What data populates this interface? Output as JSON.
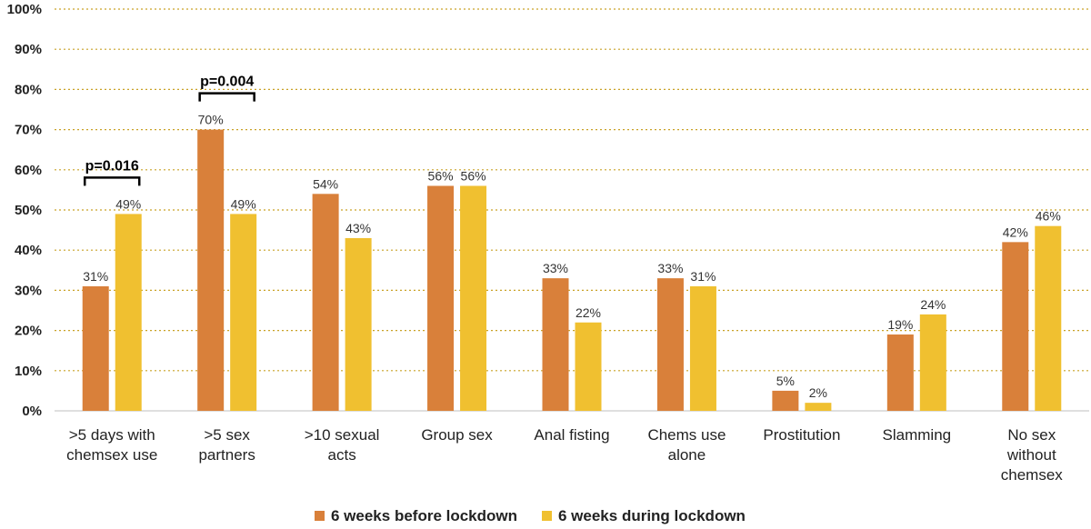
{
  "chart_data": {
    "type": "bar",
    "categories": [
      [
        ">5 days with",
        "chemsex use"
      ],
      [
        ">5 sex",
        "partners"
      ],
      [
        ">10 sexual",
        "acts"
      ],
      [
        "Group sex"
      ],
      [
        "Anal fisting"
      ],
      [
        "Chems use",
        "alone"
      ],
      [
        "Prostitution"
      ],
      [
        "Slamming"
      ],
      [
        "No sex",
        "without",
        "chemsex"
      ]
    ],
    "series": [
      {
        "name": "6 weeks before lockdown",
        "color": "#D9803A",
        "values": [
          31,
          70,
          54,
          56,
          33,
          33,
          5,
          19,
          42
        ],
        "labels": [
          "31%",
          "70%",
          "54%",
          "56%",
          "33%",
          "33%",
          "5%",
          "19%",
          "42%"
        ]
      },
      {
        "name": "6 weeks during lockdown",
        "color": "#F0C030",
        "values": [
          49,
          49,
          43,
          56,
          22,
          31,
          2,
          24,
          46
        ],
        "labels": [
          "49%",
          "49%",
          "43%",
          "56%",
          "22%",
          "31%",
          "2%",
          "24%",
          "46%"
        ]
      }
    ],
    "ylim": [
      0,
      100
    ],
    "yticks": [
      "0%",
      "10%",
      "20%",
      "30%",
      "40%",
      "50%",
      "60%",
      "70%",
      "80%",
      "90%",
      "100%"
    ],
    "grid": "dotted",
    "gridColor": "#C9A227",
    "legend_position": "bottom",
    "annotations": [
      {
        "text": "p=0.016",
        "category_index": 0
      },
      {
        "text": "p=0.004",
        "category_index": 1
      }
    ]
  }
}
